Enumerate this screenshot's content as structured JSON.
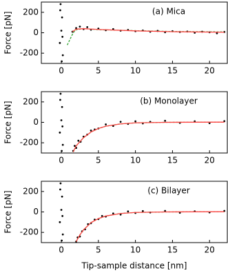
{
  "chart_data": [
    {
      "type": "scatter",
      "title": "(a) Mica",
      "ylabel": "Force [pN]",
      "xlim": [
        -2.7,
        22.4
      ],
      "ylim": [
        -300,
        300
      ],
      "xticks": [
        0,
        5,
        10,
        15,
        20
      ],
      "yticks": [
        -200,
        0,
        200
      ],
      "series": [
        {
          "color": "#000000",
          "style": "points",
          "x": [
            -0.1,
            0.1,
            0,
            -0.2,
            0.2,
            0.05,
            -0.15,
            0.15,
            1.5,
            2,
            2.5,
            3,
            3.5,
            4,
            5,
            6,
            7,
            8,
            9,
            10,
            11,
            12,
            13,
            14,
            15,
            16,
            17,
            18,
            19,
            20,
            21,
            22
          ],
          "values": [
            280,
            150,
            20,
            -100,
            -220,
            -280,
            220,
            -40,
            10,
            45,
            60,
            35,
            55,
            30,
            40,
            25,
            35,
            20,
            28,
            15,
            22,
            10,
            18,
            5,
            15,
            8,
            12,
            0,
            10,
            5,
            -5,
            8
          ]
        },
        {
          "color": "#2ca02c",
          "style": "dashed",
          "x": [
            0.8,
            1.2,
            1.6,
            2,
            3,
            5,
            10,
            15,
            22
          ],
          "values": [
            -120,
            -60,
            0,
            30,
            40,
            30,
            20,
            12,
            8
          ]
        },
        {
          "color": "#ff4040",
          "style": "solid",
          "x": [
            1.5,
            2,
            3,
            5,
            10,
            15,
            22
          ],
          "values": [
            10,
            35,
            40,
            32,
            18,
            10,
            5
          ]
        }
      ]
    },
    {
      "type": "scatter",
      "title": "(b) Monolayer",
      "ylabel": "Force [pN]",
      "xlim": [
        -2.7,
        22.4
      ],
      "ylim": [
        -300,
        300
      ],
      "xticks": [
        0,
        5,
        10,
        15,
        20
      ],
      "yticks": [
        -200,
        0,
        200
      ],
      "series": [
        {
          "color": "#000000",
          "style": "points",
          "x": [
            -0.1,
            0.1,
            0,
            -0.2,
            0.2,
            0.05,
            -0.15,
            0.15,
            1.6,
            1.8,
            2,
            2.3,
            2.6,
            3,
            3.5,
            4,
            4.5,
            5,
            6,
            7,
            8,
            9,
            10,
            11,
            12,
            14,
            16,
            18,
            20,
            22
          ],
          "values": [
            280,
            150,
            20,
            -100,
            -220,
            -280,
            220,
            -40,
            -280,
            -230,
            -250,
            -180,
            -190,
            -140,
            -120,
            -80,
            -70,
            -60,
            -20,
            -35,
            5,
            -15,
            10,
            -10,
            5,
            15,
            -5,
            10,
            -8,
            12
          ]
        },
        {
          "color": "#2ca02c",
          "style": "dashed",
          "x": [
            1.6,
            2,
            3,
            4,
            5,
            6,
            8,
            10,
            14,
            22
          ],
          "values": [
            -290,
            -230,
            -150,
            -95,
            -60,
            -38,
            -15,
            -5,
            0,
            2
          ]
        },
        {
          "color": "#ff4040",
          "style": "solid",
          "x": [
            1.6,
            2,
            3,
            4,
            5,
            6,
            8,
            10,
            14,
            22
          ],
          "values": [
            -290,
            -230,
            -150,
            -95,
            -60,
            -38,
            -15,
            -5,
            0,
            2
          ]
        }
      ]
    },
    {
      "type": "scatter",
      "title": "(c) Bilayer",
      "ylabel": "Force [pN]",
      "xlabel": "Tip-sample distance [nm]",
      "xlim": [
        -2.7,
        22.4
      ],
      "ylim": [
        -300,
        300
      ],
      "xticks": [
        0,
        5,
        10,
        15,
        20
      ],
      "yticks": [
        -200,
        0,
        200
      ],
      "series": [
        {
          "color": "#000000",
          "style": "points",
          "x": [
            -0.1,
            0.1,
            0,
            -0.2,
            0.2,
            0.05,
            -0.15,
            0.15,
            2,
            2.2,
            2.5,
            2.8,
            3.2,
            3.6,
            4,
            4.5,
            5,
            5.5,
            6,
            7,
            8,
            9,
            10,
            11,
            12,
            14,
            16,
            18,
            20,
            22
          ],
          "values": [
            280,
            150,
            20,
            -100,
            -220,
            -280,
            220,
            -40,
            -290,
            -250,
            -240,
            -190,
            -170,
            -120,
            -110,
            -75,
            -70,
            -40,
            -45,
            -15,
            -25,
            5,
            -10,
            8,
            -5,
            10,
            -8,
            6,
            -4,
            10
          ]
        },
        {
          "color": "#2ca02c",
          "style": "dashed",
          "x": [
            2,
            2.5,
            3,
            4,
            5,
            6,
            8,
            10,
            14,
            22
          ],
          "values": [
            -290,
            -225,
            -175,
            -105,
            -65,
            -40,
            -15,
            -5,
            0,
            2
          ]
        },
        {
          "color": "#ff4040",
          "style": "solid",
          "x": [
            2,
            2.5,
            3,
            4,
            5,
            6,
            8,
            10,
            14,
            22
          ],
          "values": [
            -290,
            -225,
            -175,
            -105,
            -65,
            -40,
            -15,
            -5,
            0,
            2
          ]
        }
      ]
    }
  ]
}
